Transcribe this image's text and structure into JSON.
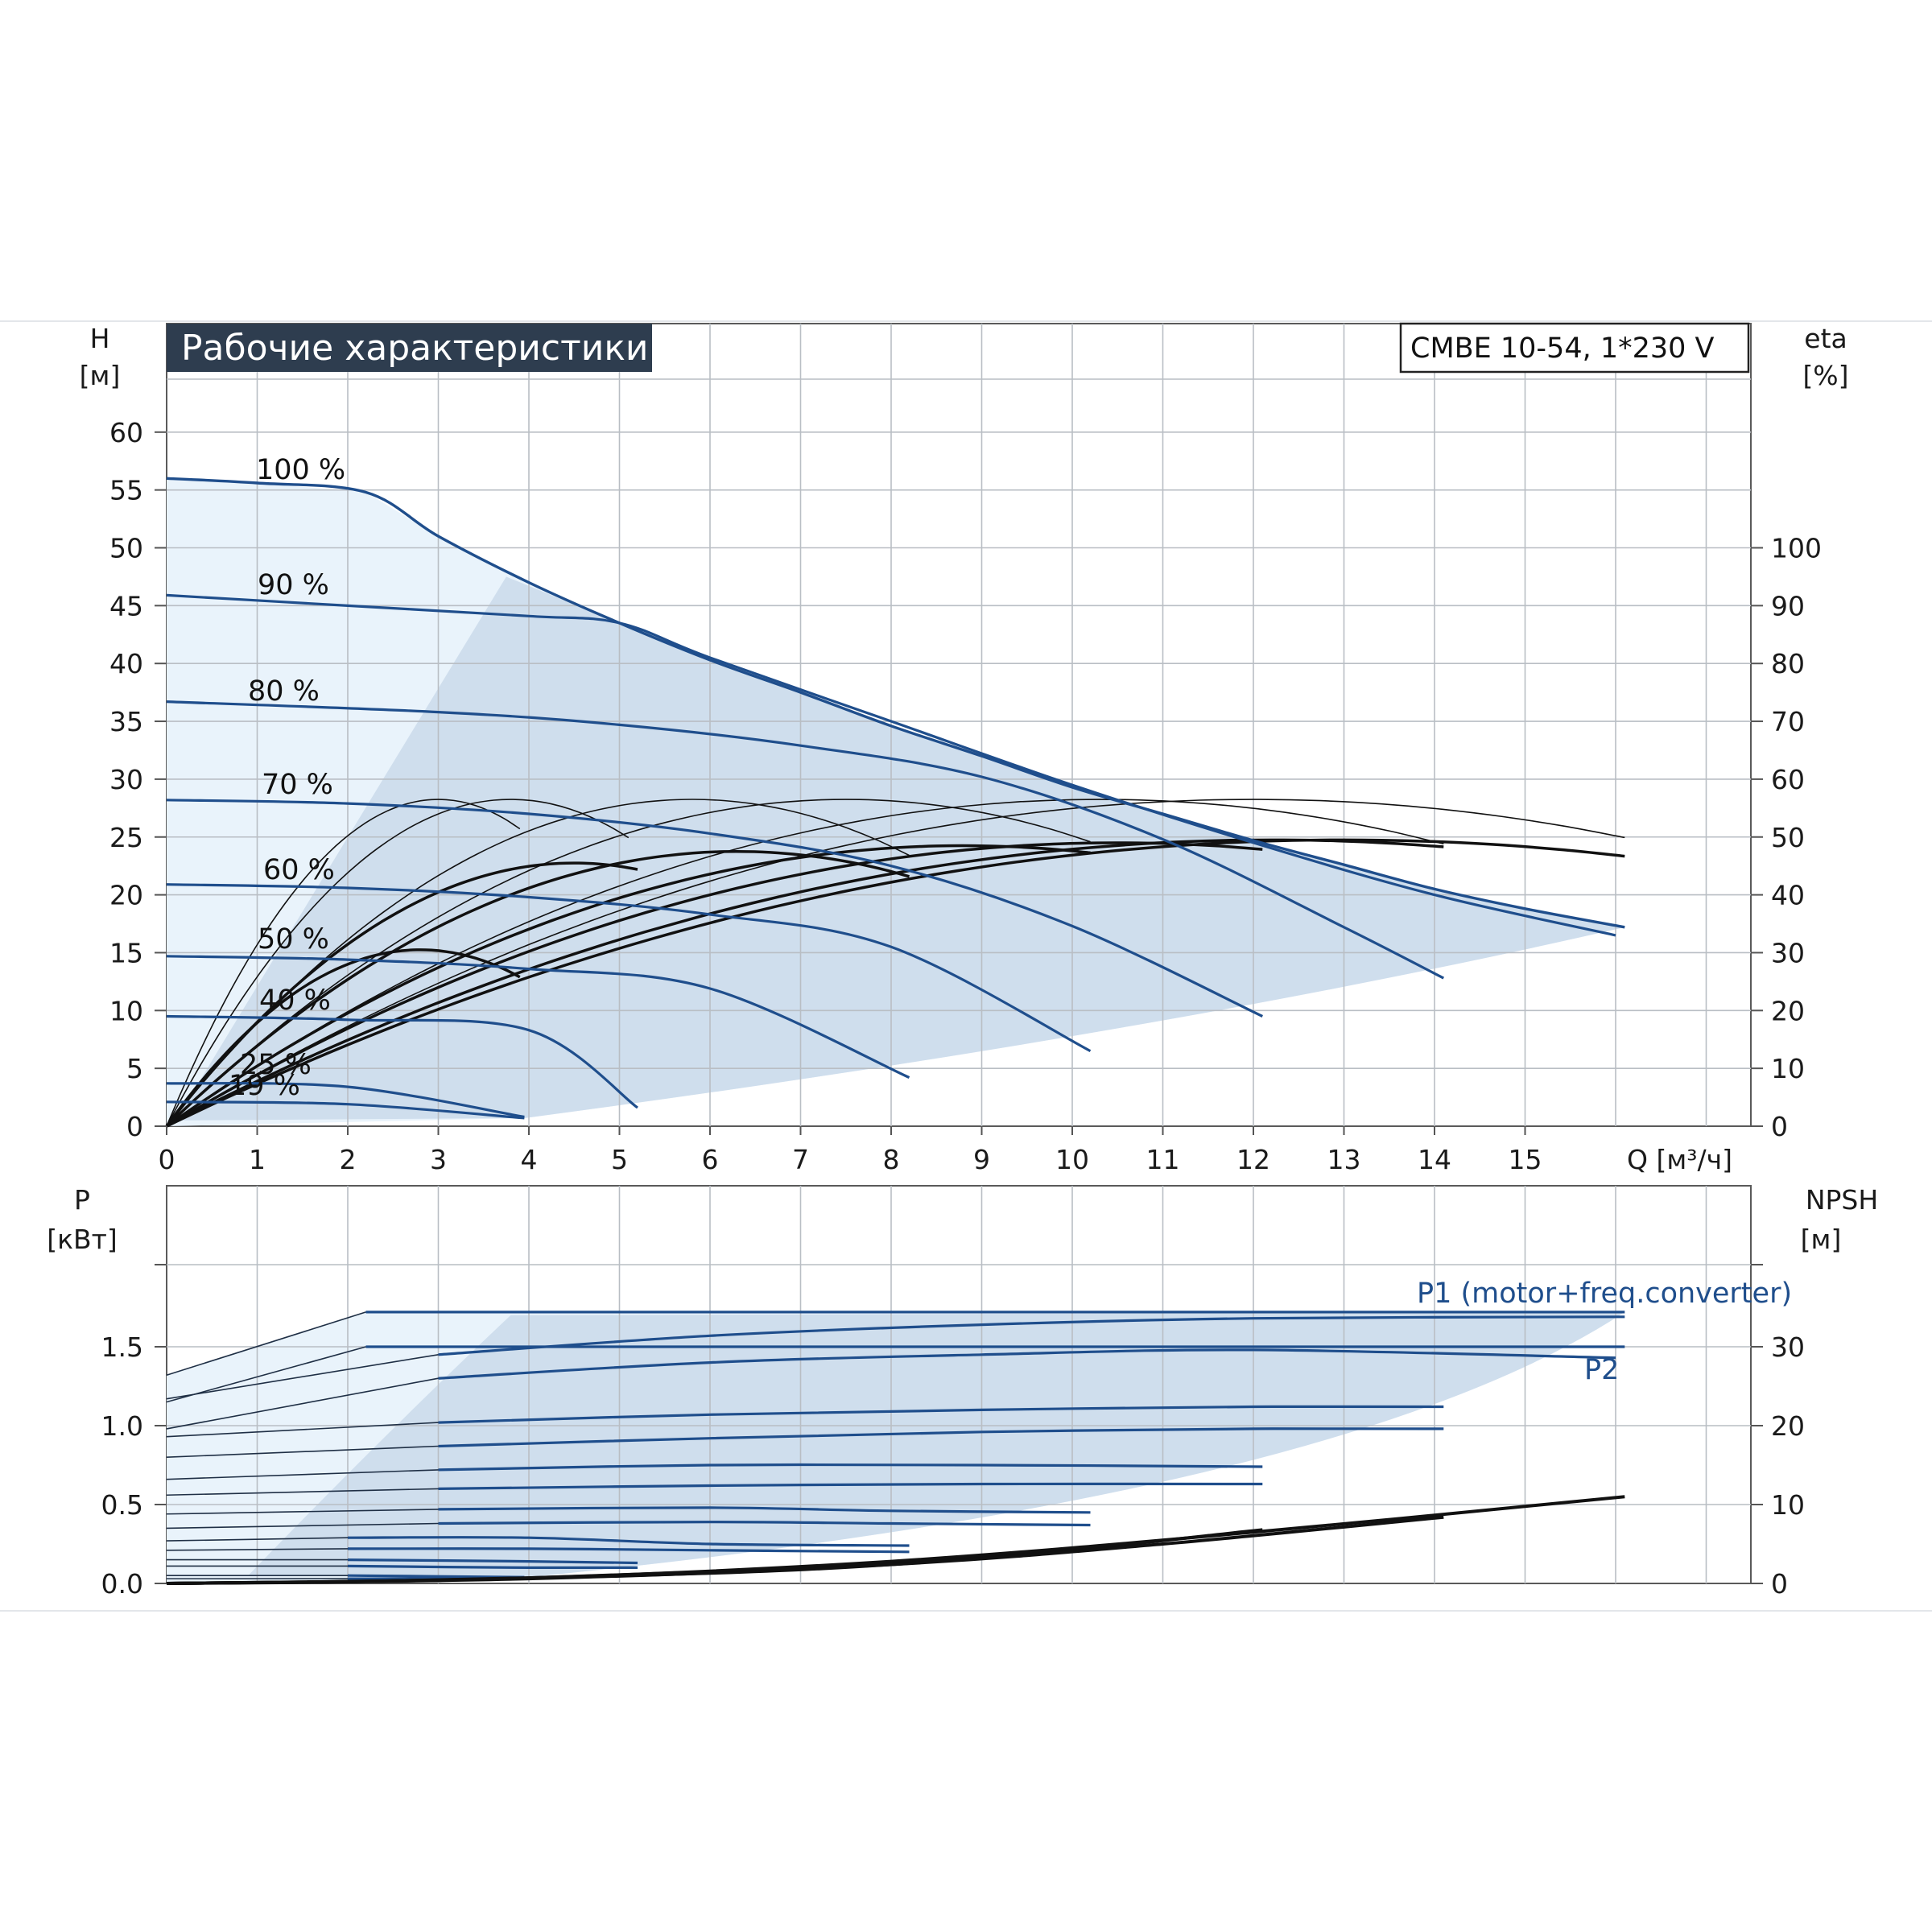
{
  "chart_data": [
    {
      "type": "line",
      "title": "Рабочие характеристики",
      "model": "CMBE 10-54, 1*230 V",
      "ylabel": "H",
      "yunit": "[м]",
      "y2label": "eta",
      "y2unit": "[%]",
      "xlabel": "Q [м³/ч]",
      "xlim": [
        0,
        17.5
      ],
      "ylim": [
        0,
        65
      ],
      "y2lim": [
        0,
        130
      ],
      "xticks": [
        "0",
        "1",
        "2",
        "3",
        "4",
        "5",
        "6",
        "7",
        "8",
        "9",
        "10",
        "11",
        "12",
        "13",
        "14",
        "15"
      ],
      "yticks": [
        "0",
        "5",
        "10",
        "15",
        "20",
        "25",
        "30",
        "35",
        "40",
        "45",
        "50",
        "55",
        "60"
      ],
      "y2ticks": [
        "0",
        "10",
        "20",
        "30",
        "40",
        "50",
        "60",
        "70",
        "80",
        "90",
        "100"
      ],
      "grid": true,
      "speed_curves": [
        {
          "label": "100 %",
          "x": [
            0,
            1,
            2.2,
            3,
            4,
            5,
            6,
            7,
            8,
            9,
            10,
            11,
            12,
            13,
            14,
            15,
            16.1
          ],
          "y": [
            56,
            55.6,
            54.8,
            51,
            47,
            43.5,
            40.3,
            37.5,
            34.6,
            32,
            29.3,
            27,
            24.7,
            22.6,
            20.5,
            18.8,
            17.2
          ]
        },
        {
          "label": "90 %",
          "x": [
            0,
            2,
            4,
            5,
            6,
            8,
            10,
            12,
            14,
            16
          ],
          "y": [
            45.9,
            45,
            44.1,
            43.5,
            40.5,
            35,
            29.5,
            24.5,
            20,
            16.5
          ]
        },
        {
          "label": "80 %",
          "x": [
            0,
            3,
            5,
            7,
            9,
            11,
            13,
            14.1
          ],
          "y": [
            36.7,
            35.8,
            34.7,
            32.9,
            30.2,
            24.8,
            17.2,
            12.8
          ]
        },
        {
          "label": "70 %",
          "x": [
            0,
            2,
            4,
            6,
            8,
            10,
            12.1
          ],
          "y": [
            28.2,
            27.9,
            27,
            25.3,
            22.5,
            17.3,
            9.5
          ]
        },
        {
          "label": "60 %",
          "x": [
            0,
            2,
            4,
            6,
            8,
            10.2
          ],
          "y": [
            20.9,
            20.6,
            19.8,
            18.3,
            15.5,
            6.5
          ]
        },
        {
          "label": "50 %",
          "x": [
            0,
            2,
            4,
            6,
            8.2
          ],
          "y": [
            14.7,
            14.4,
            13.6,
            11.9,
            4.2
          ]
        },
        {
          "label": "40 %",
          "x": [
            0,
            2,
            4,
            5.2
          ],
          "y": [
            9.5,
            9.2,
            8.3,
            1.6
          ]
        },
        {
          "label": "25 %",
          "x": [
            0,
            2,
            3.95
          ],
          "y": [
            3.7,
            3.4,
            0.8
          ]
        },
        {
          "label": "19 %",
          "x": [
            0,
            2,
            3.95
          ],
          "y": [
            2.1,
            1.9,
            0.7
          ]
        }
      ],
      "eta_curves": [
        {
          "peak_q": 3.0,
          "peak_eta": 56.5,
          "end_q": 3.9
        },
        {
          "peak_q": 3.8,
          "peak_eta": 56.5,
          "end_q": 5.1
        },
        {
          "peak_q": 5.8,
          "peak_eta": 56.5,
          "end_q": 8.2
        },
        {
          "peak_q": 7.5,
          "peak_eta": 56.5,
          "end_q": 10.2
        },
        {
          "peak_q": 10.3,
          "peak_eta": 56.5,
          "end_q": 14.1
        },
        {
          "peak_q": 12.0,
          "peak_eta": 56.5,
          "end_q": 16.1
        },
        {
          "peak_q": 2.8,
          "peak_eta": 30.5,
          "end_q": 3.9
        },
        {
          "peak_q": 4.5,
          "peak_eta": 45.5,
          "end_q": 5.2
        },
        {
          "peak_q": 6.3,
          "peak_eta": 47.5,
          "end_q": 8.2
        },
        {
          "peak_q": 8.8,
          "peak_eta": 48.5,
          "end_q": 10.2
        },
        {
          "peak_q": 10.5,
          "peak_eta": 49.0,
          "end_q": 12.1
        },
        {
          "peak_q": 12.2,
          "peak_eta": 49.5,
          "end_q": 14.1
        },
        {
          "peak_q": 13.0,
          "peak_eta": 49.5,
          "end_q": 16.1
        }
      ]
    },
    {
      "type": "line",
      "ylabel": "P",
      "yunit": "[кВт]",
      "y2label": "NPSH",
      "y2unit": "[м]",
      "xlim": [
        0,
        17.5
      ],
      "ylim": [
        0,
        2.0
      ],
      "y2lim": [
        0,
        40
      ],
      "yticks": [
        "0.0",
        "0.5",
        "1.0",
        "1.5"
      ],
      "y2ticks": [
        "0",
        "10",
        "20",
        "30"
      ],
      "grid": true,
      "legend": [
        "P1 (motor+freq.converter)",
        "P2"
      ],
      "p1_curves": [
        {
          "x": [
            0,
            2.2,
            5,
            16.1
          ],
          "y": [
            1.32,
            1.72,
            1.72,
            1.72
          ]
        },
        {
          "x": [
            0,
            3,
            6,
            9,
            12,
            16.1
          ],
          "y": [
            1.17,
            1.45,
            1.57,
            1.64,
            1.68,
            1.69
          ]
        },
        {
          "x": [
            0,
            3,
            6,
            9,
            12,
            14.1
          ],
          "y": [
            0.93,
            1.02,
            1.07,
            1.1,
            1.12,
            1.12
          ]
        },
        {
          "x": [
            0,
            3,
            6,
            9,
            12.1
          ],
          "y": [
            0.66,
            0.72,
            0.75,
            0.75,
            0.74
          ]
        },
        {
          "x": [
            0,
            3,
            6,
            8,
            10.2
          ],
          "y": [
            0.44,
            0.47,
            0.48,
            0.46,
            0.45
          ]
        },
        {
          "x": [
            0,
            2,
            4,
            6,
            8.2
          ],
          "y": [
            0.27,
            0.29,
            0.29,
            0.25,
            0.24
          ]
        },
        {
          "x": [
            0,
            2,
            4,
            5.2
          ],
          "y": [
            0.15,
            0.15,
            0.14,
            0.13
          ]
        },
        {
          "x": [
            0,
            2,
            3.95
          ],
          "y": [
            0.05,
            0.05,
            0.04
          ]
        }
      ],
      "p2_curves": [
        {
          "x": [
            0,
            2.2,
            5,
            9,
            13,
            16.1
          ],
          "y": [
            1.15,
            1.5,
            1.5,
            1.5,
            1.5,
            1.5
          ]
        },
        {
          "x": [
            0,
            3,
            6,
            9,
            12,
            16
          ],
          "y": [
            0.98,
            1.3,
            1.4,
            1.45,
            1.48,
            1.43
          ]
        },
        {
          "x": [
            0,
            3,
            6,
            9,
            12,
            14.1
          ],
          "y": [
            0.8,
            0.87,
            0.92,
            0.96,
            0.98,
            0.98
          ]
        },
        {
          "x": [
            0,
            3,
            6,
            9,
            12.1
          ],
          "y": [
            0.56,
            0.6,
            0.62,
            0.63,
            0.63
          ]
        },
        {
          "x": [
            0,
            3,
            6,
            8,
            10.2
          ],
          "y": [
            0.35,
            0.38,
            0.39,
            0.38,
            0.37
          ]
        },
        {
          "x": [
            0,
            2,
            4,
            6,
            8.2
          ],
          "y": [
            0.21,
            0.22,
            0.22,
            0.21,
            0.2
          ]
        },
        {
          "x": [
            0,
            2,
            4,
            5.2
          ],
          "y": [
            0.11,
            0.11,
            0.1,
            0.1
          ]
        },
        {
          "x": [
            0,
            2,
            3.95
          ],
          "y": [
            0.03,
            0.03,
            0.03
          ]
        }
      ],
      "npsh_curves": [
        {
          "x": [
            0,
            2,
            4,
            6,
            8.2
          ],
          "y": [
            0,
            0.2,
            0.7,
            1.5,
            2.8
          ]
        },
        {
          "x": [
            0,
            3,
            6,
            8,
            10.2
          ],
          "y": [
            0,
            0.4,
            1.3,
            2.4,
            4.5
          ]
        },
        {
          "x": [
            0,
            3,
            6,
            9,
            12.1
          ],
          "y": [
            0,
            0.4,
            1.4,
            3.2,
            6.8
          ]
        },
        {
          "x": [
            0,
            4,
            8,
            11,
            14.1
          ],
          "y": [
            0,
            0.6,
            2.4,
            5.0,
            8.4
          ]
        },
        {
          "x": [
            0,
            4,
            8,
            12,
            16.1
          ],
          "y": [
            0,
            0.7,
            2.8,
            6.5,
            11.0
          ]
        }
      ]
    }
  ]
}
